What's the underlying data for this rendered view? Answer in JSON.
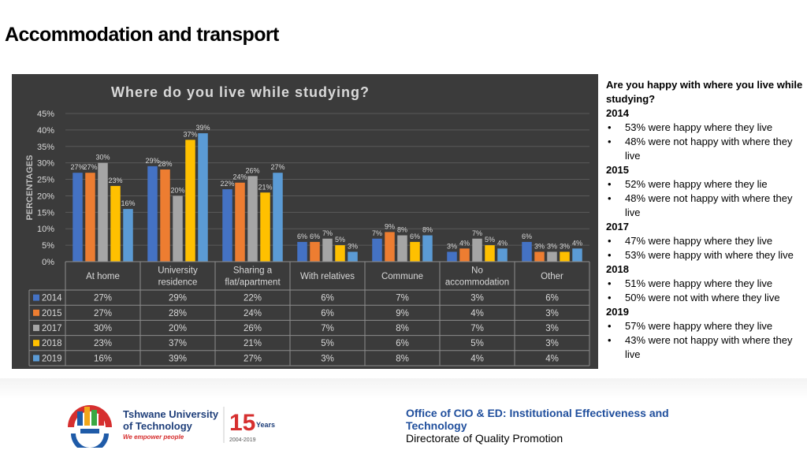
{
  "page_title": "Accommodation and transport",
  "chart_data": {
    "type": "bar",
    "title": "Where do you live while studying?",
    "ylabel": "PERCENTAGES",
    "xlabel": "",
    "ylim": [
      0,
      45
    ],
    "yticks": [
      "0%",
      "5%",
      "10%",
      "15%",
      "20%",
      "25%",
      "30%",
      "35%",
      "40%",
      "45%"
    ],
    "categories": [
      [
        "At home"
      ],
      [
        "University",
        "residence"
      ],
      [
        "Sharing a",
        "flat/apartment"
      ],
      [
        "With relatives"
      ],
      [
        "Commune"
      ],
      [
        "No",
        "accommodation"
      ],
      [
        "Other"
      ]
    ],
    "series": [
      {
        "name": "2014",
        "color": "#4472c4",
        "values": [
          27,
          29,
          22,
          6,
          7,
          3,
          6
        ]
      },
      {
        "name": "2015",
        "color": "#ed7d31",
        "values": [
          27,
          28,
          24,
          6,
          9,
          4,
          3
        ]
      },
      {
        "name": "2017",
        "color": "#a5a5a5",
        "values": [
          30,
          20,
          26,
          7,
          8,
          7,
          3
        ]
      },
      {
        "name": "2018",
        "color": "#ffc000",
        "values": [
          23,
          37,
          21,
          5,
          6,
          5,
          3
        ]
      },
      {
        "name": "2019",
        "color": "#5b9bd5",
        "values": [
          16,
          39,
          27,
          3,
          8,
          4,
          4
        ]
      }
    ]
  },
  "side_panel": {
    "question": "Are you happy with where you live while studying?",
    "years": [
      {
        "year": "2014",
        "items": [
          "53% were happy where they live",
          "48% were not happy with where they live"
        ]
      },
      {
        "year": "2015",
        "items": [
          "52% were happy where they lie",
          "48% were not happy with where they live"
        ]
      },
      {
        "year": "2017",
        "items": [
          "47% were happy where they live",
          "53% were happy with where they live"
        ]
      },
      {
        "year": "2018",
        "items": [
          "51% were happy where they live",
          "50% were not with where they live"
        ]
      },
      {
        "year": "2019",
        "items": [
          "57% were happy where they live",
          "43% were not happy with where they live"
        ]
      }
    ]
  },
  "logo": {
    "university_line1": "Tshwane University",
    "university_line2": "of Technology",
    "tagline": "We empower people",
    "anniversary_number": "15",
    "anniversary_word": "Years",
    "anniversary_range": "2004-2019"
  },
  "footer": {
    "line1": "Office of CIO & ED: Institutional  Effectiveness and",
    "line2": "Technology",
    "line3": "Directorate of Quality Promotion"
  }
}
